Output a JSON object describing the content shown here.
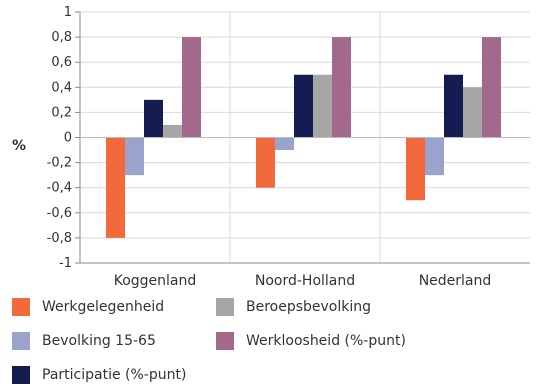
{
  "chart_data": {
    "type": "bar",
    "ylabel": "%",
    "ylim": [
      -1,
      1
    ],
    "yticks": [
      "1",
      "0,8",
      "0,6",
      "0,4",
      "0,2",
      "0",
      "-0,2",
      "-0,4",
      "-0,6",
      "-0,8",
      "-1"
    ],
    "categories": [
      "Koggenland",
      "Noord-Holland",
      "Nederland"
    ],
    "series": [
      {
        "name": "Werkgelegenheid",
        "color": "#f26a3c",
        "values": [
          -0.8,
          -0.4,
          -0.5
        ]
      },
      {
        "name": "Bevolking 15-65",
        "color": "#9aa3cc",
        "values": [
          -0.3,
          -0.1,
          -0.3
        ]
      },
      {
        "name": "Participatie (%-punt)",
        "color": "#141c52",
        "values": [
          0.3,
          0.5,
          0.5
        ]
      },
      {
        "name": "Beroepsbevolking",
        "color": "#a6a6a6",
        "values": [
          0.1,
          0.5,
          0.4
        ]
      },
      {
        "name": "Werkloosheid (%-punt)",
        "color": "#a3698d",
        "values": [
          0.8,
          0.8,
          0.8
        ]
      }
    ],
    "grid": true,
    "legend_position": "bottom"
  }
}
